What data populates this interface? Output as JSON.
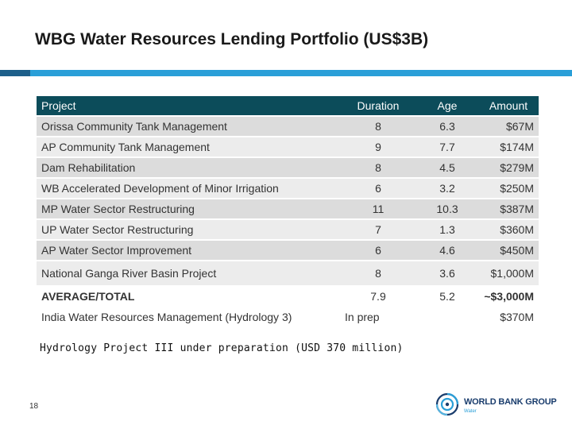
{
  "slide": {
    "title": "WBG Water Resources Lending Portfolio (US$3B)",
    "page_number": "18",
    "note": "Hydrology Project III under preparation (USD 370 million)"
  },
  "table": {
    "headers": [
      "Project",
      "Duration",
      "Age",
      "Amount"
    ],
    "rows": [
      {
        "project": "Orissa Community Tank Management",
        "duration": "8",
        "age": "6.3",
        "amount": "$67M"
      },
      {
        "project": "AP Community Tank Management",
        "duration": "9",
        "age": "7.7",
        "amount": "$174M"
      },
      {
        "project": "Dam Rehabilitation",
        "duration": "8",
        "age": "4.5",
        "amount": "$279M"
      },
      {
        "project": "WB Accelerated Development of Minor Irrigation",
        "duration": "6",
        "age": "3.2",
        "amount": "$250M"
      },
      {
        "project": "MP Water Sector Restructuring",
        "duration": "11",
        "age": "10.3",
        "amount": "$387M"
      },
      {
        "project": "UP Water Sector Restructuring",
        "duration": "7",
        "age": "1.3",
        "amount": "$360M"
      },
      {
        "project": "AP Water Sector Improvement",
        "duration": "6",
        "age": "4.6",
        "amount": "$450M"
      },
      {
        "project": "National Ganga River Basin Project",
        "duration": "8",
        "age": "3.6",
        "amount": "$1,000M"
      }
    ],
    "total": {
      "project": "AVERAGE/TOTAL",
      "duration": "7.9",
      "age": "5.2",
      "amount": "~$3,000M"
    },
    "extra": {
      "project": "India Water Resources Management (Hydrology 3)",
      "duration": "In prep",
      "age": "",
      "amount": "$370M"
    }
  },
  "logo": {
    "name": "WORLD BANK GROUP",
    "sub": "Water",
    "icon": "world-bank-globe-icon"
  },
  "colors": {
    "header_bg": "#0c4c5a",
    "accent_blue": "#2a9fd8",
    "accent_dark": "#1d5f8a"
  }
}
